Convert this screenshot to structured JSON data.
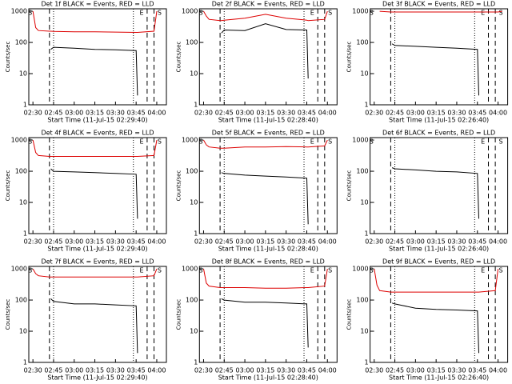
{
  "chart_data": [
    {
      "type": "line",
      "title": "Det 1f BLACK = Events, RED = LLD",
      "xlabel": "Start Time (11-Jul-15 02:29:40)",
      "ylabel": "Counts/sec",
      "log": true,
      "ylim": [
        1,
        1200
      ],
      "yticks": [
        1,
        10,
        100,
        1000
      ],
      "xlim": [
        "02:27",
        "04:07"
      ],
      "xticks": [
        "02:30",
        "02:45",
        "03:00",
        "03:15",
        "03:30",
        "03:45",
        "04:00"
      ],
      "x": [
        "02:30",
        "02:32",
        "02:34",
        "02:42",
        "02:43",
        "02:45",
        "03:00",
        "03:15",
        "03:30",
        "03:45",
        "03:46",
        "03:58",
        "04:00",
        "04:03"
      ],
      "series": [
        {
          "name": "Events",
          "color": "#000000",
          "values": [
            null,
            null,
            null,
            null,
            60,
            70,
            65,
            60,
            58,
            55,
            2,
            null,
            null,
            null
          ]
        },
        {
          "name": "LLD",
          "color": "#dd0000",
          "values": [
            1000,
            300,
            240,
            230,
            230,
            225,
            220,
            220,
            215,
            210,
            210,
            230,
            1000,
            null
          ]
        }
      ],
      "vlines": [
        {
          "x": "02:42",
          "style": "dashed"
        },
        {
          "x": "02:45",
          "style": "dotted"
        },
        {
          "x": "03:43",
          "style": "dotted"
        },
        {
          "x": "03:53",
          "style": "dashed"
        },
        {
          "x": "03:58",
          "style": "dashed"
        }
      ],
      "annotations": [
        {
          "text": "S",
          "x": "02:28"
        },
        {
          "text": "E",
          "x": "03:49"
        },
        {
          "text": "S",
          "x": "04:02"
        }
      ]
    },
    {
      "type": "line",
      "title": "Det 2f BLACK = Events, RED = LLD",
      "xlabel": "Start Time (11-Jul-15 02:28:40)",
      "ylabel": "Counts/sec",
      "log": true,
      "ylim": [
        1,
        1200
      ],
      "yticks": [
        1,
        10,
        100,
        1000
      ],
      "xlim": [
        "02:27",
        "04:07"
      ],
      "xticks": [
        "02:30",
        "02:45",
        "03:00",
        "03:15",
        "03:30",
        "03:45",
        "04:00"
      ],
      "x": [
        "02:30",
        "02:32",
        "02:34",
        "02:42",
        "02:43",
        "02:45",
        "03:00",
        "03:15",
        "03:30",
        "03:45",
        "03:46",
        "03:58",
        "04:00",
        "04:03"
      ],
      "series": [
        {
          "name": "Events",
          "color": "#000000",
          "values": [
            null,
            null,
            null,
            null,
            200,
            250,
            240,
            400,
            260,
            250,
            7,
            null,
            null,
            null
          ]
        },
        {
          "name": "LLD",
          "color": "#dd0000",
          "values": [
            1000,
            700,
            550,
            500,
            500,
            520,
            600,
            800,
            600,
            520,
            500,
            550,
            1000,
            null
          ]
        }
      ],
      "vlines": [
        {
          "x": "02:42",
          "style": "dashed"
        },
        {
          "x": "02:45",
          "style": "dotted"
        },
        {
          "x": "03:43",
          "style": "dotted"
        },
        {
          "x": "03:53",
          "style": "dashed"
        },
        {
          "x": "03:58",
          "style": "dashed"
        }
      ],
      "annotations": [
        {
          "text": "S",
          "x": "02:28"
        },
        {
          "text": "E",
          "x": "03:49"
        },
        {
          "text": "S",
          "x": "04:02"
        }
      ]
    },
    {
      "type": "line",
      "title": "Det 3f BLACK = Events, RED = LLD",
      "xlabel": "Start Time (11-Jul-15 02:26:40)",
      "ylabel": "Counts/sec",
      "log": true,
      "ylim": [
        1,
        1200
      ],
      "yticks": [
        1,
        10,
        100,
        1000
      ],
      "xlim": [
        "02:27",
        "04:07"
      ],
      "xticks": [
        "02:30",
        "02:45",
        "03:00",
        "03:15",
        "03:30",
        "03:45",
        "04:00"
      ],
      "x": [
        "02:30",
        "02:32",
        "02:34",
        "02:42",
        "02:43",
        "02:45",
        "03:00",
        "03:15",
        "03:30",
        "03:45",
        "03:46",
        "03:58",
        "04:00",
        "04:03"
      ],
      "series": [
        {
          "name": "Events",
          "color": "#000000",
          "values": [
            null,
            null,
            null,
            null,
            90,
            80,
            75,
            70,
            65,
            60,
            2,
            null,
            null,
            null
          ]
        },
        {
          "name": "LLD",
          "color": "#dd0000",
          "values": [
            null,
            null,
            1000,
            950,
            950,
            950,
            950,
            950,
            950,
            950,
            950,
            950,
            950,
            1000
          ]
        }
      ],
      "vlines": [
        {
          "x": "02:42",
          "style": "dashed"
        },
        {
          "x": "02:45",
          "style": "dotted"
        },
        {
          "x": "03:43",
          "style": "dotted"
        },
        {
          "x": "03:53",
          "style": "dashed"
        },
        {
          "x": "03:58",
          "style": "dashed"
        }
      ],
      "annotations": [
        {
          "text": "S",
          "x": "02:28"
        },
        {
          "text": "E",
          "x": "03:49"
        },
        {
          "text": "S",
          "x": "04:02"
        }
      ]
    },
    {
      "type": "line",
      "title": "Det 4f BLACK = Events, RED = LLD",
      "xlabel": "Start Time (11-Jul-15 02:29:40)",
      "ylabel": "Counts/sec",
      "log": true,
      "ylim": [
        1,
        1200
      ],
      "yticks": [
        1,
        10,
        100,
        1000
      ],
      "xlim": [
        "02:27",
        "04:07"
      ],
      "xticks": [
        "02:30",
        "02:45",
        "03:00",
        "03:15",
        "03:30",
        "03:45",
        "04:00"
      ],
      "x": [
        "02:30",
        "02:32",
        "02:34",
        "02:42",
        "02:43",
        "02:45",
        "03:00",
        "03:15",
        "03:30",
        "03:45",
        "03:46",
        "03:58",
        "04:00",
        "04:03"
      ],
      "series": [
        {
          "name": "Events",
          "color": "#000000",
          "values": [
            null,
            null,
            null,
            null,
            120,
            100,
            95,
            90,
            85,
            80,
            3,
            null,
            null,
            null
          ]
        },
        {
          "name": "LLD",
          "color": "#dd0000",
          "values": [
            1000,
            400,
            320,
            300,
            300,
            300,
            300,
            300,
            300,
            300,
            300,
            320,
            1000,
            null
          ]
        }
      ],
      "vlines": [
        {
          "x": "02:42",
          "style": "dashed"
        },
        {
          "x": "02:45",
          "style": "dotted"
        },
        {
          "x": "03:43",
          "style": "dotted"
        },
        {
          "x": "03:53",
          "style": "dashed"
        },
        {
          "x": "03:58",
          "style": "dashed"
        }
      ],
      "annotations": [
        {
          "text": "S",
          "x": "02:28"
        },
        {
          "text": "E",
          "x": "03:49"
        },
        {
          "text": "S",
          "x": "04:02"
        }
      ]
    },
    {
      "type": "line",
      "title": "Det 5f BLACK = Events, RED = LLD",
      "xlabel": "Start Time (11-Jul-15 02:28:40)",
      "ylabel": "Counts/sec",
      "log": true,
      "ylim": [
        1,
        1200
      ],
      "yticks": [
        1,
        10,
        100,
        1000
      ],
      "xlim": [
        "02:27",
        "04:07"
      ],
      "xticks": [
        "02:30",
        "02:45",
        "03:00",
        "03:15",
        "03:30",
        "03:45",
        "04:00"
      ],
      "x": [
        "02:30",
        "02:32",
        "02:34",
        "02:42",
        "02:43",
        "02:45",
        "03:00",
        "03:15",
        "03:30",
        "03:45",
        "03:46",
        "03:58",
        "04:00",
        "04:03"
      ],
      "series": [
        {
          "name": "Events",
          "color": "#000000",
          "values": [
            null,
            null,
            null,
            null,
            90,
            85,
            75,
            70,
            65,
            60,
            2,
            null,
            null,
            null
          ]
        },
        {
          "name": "LLD",
          "color": "#dd0000",
          "values": [
            1000,
            700,
            600,
            550,
            550,
            550,
            600,
            600,
            620,
            600,
            600,
            650,
            1000,
            null
          ]
        }
      ],
      "vlines": [
        {
          "x": "02:42",
          "style": "dashed"
        },
        {
          "x": "02:45",
          "style": "dotted"
        },
        {
          "x": "03:43",
          "style": "dotted"
        },
        {
          "x": "03:53",
          "style": "dashed"
        },
        {
          "x": "03:58",
          "style": "dashed"
        }
      ],
      "annotations": [
        {
          "text": "S",
          "x": "02:28"
        },
        {
          "text": "E",
          "x": "03:49"
        },
        {
          "text": "S",
          "x": "04:02"
        }
      ]
    },
    {
      "type": "line",
      "title": "Det 6f BLACK = Events, RED = LLD",
      "xlabel": "Start Time (11-Jul-15 02:26:40)",
      "ylabel": "Counts/sec",
      "log": true,
      "ylim": [
        1,
        1200
      ],
      "yticks": [
        1,
        10,
        100,
        1000
      ],
      "xlim": [
        "02:27",
        "04:07"
      ],
      "xticks": [
        "02:30",
        "02:45",
        "03:00",
        "03:15",
        "03:30",
        "03:45",
        "04:00"
      ],
      "x": [
        "02:30",
        "02:32",
        "02:34",
        "02:42",
        "02:43",
        "02:45",
        "03:00",
        "03:15",
        "03:30",
        "03:45",
        "03:46",
        "03:58",
        "04:00",
        "04:03"
      ],
      "series": [
        {
          "name": "Events",
          "color": "#000000",
          "values": [
            null,
            null,
            null,
            null,
            130,
            120,
            110,
            100,
            95,
            85,
            3,
            null,
            null,
            null
          ]
        }
      ],
      "vlines": [
        {
          "x": "02:42",
          "style": "dashed"
        },
        {
          "x": "02:45",
          "style": "dotted"
        },
        {
          "x": "03:43",
          "style": "dotted"
        },
        {
          "x": "03:53",
          "style": "dashed"
        },
        {
          "x": "03:58",
          "style": "dashed"
        }
      ],
      "annotations": [
        {
          "text": "S",
          "x": "02:28"
        },
        {
          "text": "E",
          "x": "03:49"
        },
        {
          "text": "S",
          "x": "04:02"
        }
      ]
    },
    {
      "type": "line",
      "title": "Det 7f BLACK = Events, RED = LLD",
      "xlabel": "Start Time (11-Jul-15 02:29:40)",
      "ylabel": "Counts/sec",
      "log": true,
      "ylim": [
        1,
        1200
      ],
      "yticks": [
        1,
        10,
        100,
        1000
      ],
      "xlim": [
        "02:27",
        "04:07"
      ],
      "xticks": [
        "02:30",
        "02:45",
        "03:00",
        "03:15",
        "03:30",
        "03:45",
        "04:00"
      ],
      "x": [
        "02:30",
        "02:32",
        "02:34",
        "02:42",
        "02:43",
        "02:45",
        "03:00",
        "03:15",
        "03:30",
        "03:45",
        "03:46",
        "03:58",
        "04:00",
        "04:03"
      ],
      "series": [
        {
          "name": "Events",
          "color": "#000000",
          "values": [
            null,
            null,
            null,
            null,
            110,
            90,
            75,
            75,
            70,
            65,
            2,
            null,
            null,
            null
          ]
        },
        {
          "name": "LLD",
          "color": "#dd0000",
          "values": [
            1000,
            700,
            600,
            550,
            550,
            550,
            550,
            550,
            550,
            550,
            550,
            600,
            1000,
            null
          ]
        }
      ],
      "vlines": [
        {
          "x": "02:42",
          "style": "dashed"
        },
        {
          "x": "02:45",
          "style": "dotted"
        },
        {
          "x": "03:43",
          "style": "dotted"
        },
        {
          "x": "03:53",
          "style": "dashed"
        },
        {
          "x": "03:58",
          "style": "dashed"
        }
      ],
      "annotations": [
        {
          "text": "S",
          "x": "02:28"
        },
        {
          "text": "E",
          "x": "03:49"
        },
        {
          "text": "S",
          "x": "04:02"
        }
      ]
    },
    {
      "type": "line",
      "title": "Det 8f BLACK = Events, RED = LLD",
      "xlabel": "Start Time (11-Jul-15 02:28:40)",
      "ylabel": "Counts/sec",
      "log": true,
      "ylim": [
        1,
        1200
      ],
      "yticks": [
        1,
        10,
        100,
        1000
      ],
      "xlim": [
        "02:27",
        "04:07"
      ],
      "xticks": [
        "02:30",
        "02:45",
        "03:00",
        "03:15",
        "03:30",
        "03:45",
        "04:00"
      ],
      "x": [
        "02:30",
        "02:32",
        "02:34",
        "02:42",
        "02:43",
        "02:45",
        "03:00",
        "03:15",
        "03:30",
        "03:45",
        "03:46",
        "03:58",
        "04:00",
        "04:03"
      ],
      "series": [
        {
          "name": "Events",
          "color": "#000000",
          "values": [
            null,
            null,
            null,
            null,
            110,
            100,
            85,
            85,
            80,
            75,
            3,
            null,
            null,
            null
          ]
        },
        {
          "name": "LLD",
          "color": "#dd0000",
          "values": [
            1000,
            350,
            280,
            250,
            250,
            250,
            250,
            240,
            240,
            250,
            250,
            280,
            1000,
            null
          ]
        }
      ],
      "vlines": [
        {
          "x": "02:42",
          "style": "dashed"
        },
        {
          "x": "02:45",
          "style": "dotted"
        },
        {
          "x": "03:43",
          "style": "dotted"
        },
        {
          "x": "03:53",
          "style": "dashed"
        },
        {
          "x": "03:58",
          "style": "dashed"
        }
      ],
      "annotations": [
        {
          "text": "S",
          "x": "02:28"
        },
        {
          "text": "E",
          "x": "03:49"
        },
        {
          "text": "S",
          "x": "04:02"
        }
      ]
    },
    {
      "type": "line",
      "title": "Det 9f BLACK = Events, RED = LLD",
      "xlabel": "Start Time (11-Jul-15 02:26:40)",
      "ylabel": "Counts/sec",
      "log": true,
      "ylim": [
        1,
        1200
      ],
      "yticks": [
        1,
        10,
        100,
        1000
      ],
      "xlim": [
        "02:27",
        "04:07"
      ],
      "xticks": [
        "02:30",
        "02:45",
        "03:00",
        "03:15",
        "03:30",
        "03:45",
        "04:00"
      ],
      "x": [
        "02:30",
        "02:32",
        "02:34",
        "02:42",
        "02:43",
        "02:45",
        "03:00",
        "03:15",
        "03:30",
        "03:45",
        "03:46",
        "03:58",
        "04:00",
        "04:03"
      ],
      "series": [
        {
          "name": "Events",
          "color": "#000000",
          "values": [
            null,
            null,
            null,
            null,
            80,
            75,
            55,
            50,
            48,
            45,
            2,
            null,
            null,
            null
          ]
        },
        {
          "name": "LLD",
          "color": "#dd0000",
          "values": [
            1000,
            300,
            200,
            180,
            180,
            180,
            180,
            180,
            180,
            180,
            180,
            200,
            1000,
            null
          ]
        }
      ],
      "vlines": [
        {
          "x": "02:42",
          "style": "dashed"
        },
        {
          "x": "02:45",
          "style": "dotted"
        },
        {
          "x": "03:43",
          "style": "dotted"
        },
        {
          "x": "03:53",
          "style": "dashed"
        },
        {
          "x": "03:58",
          "style": "dashed"
        }
      ],
      "annotations": [
        {
          "text": "S",
          "x": "02:28"
        },
        {
          "text": "E",
          "x": "03:49"
        },
        {
          "text": "S",
          "x": "04:02"
        }
      ]
    }
  ]
}
